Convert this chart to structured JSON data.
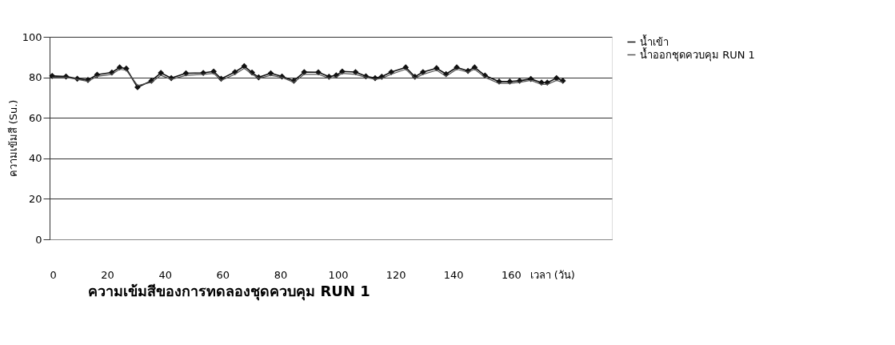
{
  "chart_data": {
    "type": "line",
    "title": "ความเข้มสีของการทดลองชุดควบคุม RUN 1",
    "xlabel": "เวลา (วัน)",
    "ylabel": "ความเข้มสี (Su.)",
    "xlim": [
      0,
      195
    ],
    "xticks": [
      0,
      20,
      40,
      60,
      80,
      100,
      120,
      140,
      160
    ],
    "ylim": [
      0,
      100
    ],
    "yticks": [
      0,
      20,
      40,
      60,
      80,
      100
    ],
    "grid": "y",
    "legend": "right",
    "marker": "diamond",
    "x": [
      0.9,
      5.7,
      9.6,
      13.3,
      16.5,
      21.6,
      24.3,
      26.6,
      30.5,
      35.3,
      38.6,
      42.2,
      47.3,
      53.3,
      56.9,
      59.5,
      64.3,
      67.5,
      70.2,
      72.5,
      76.7,
      80.6,
      84.7,
      88.3,
      93.2,
      96.9,
      99.4,
      101.5,
      106.1,
      109.7,
      112.9,
      115.2,
      118.5,
      123.5,
      126.7,
      129.5,
      134.2,
      137.5,
      141.2,
      145.1,
      147.4,
      151,
      155.9,
      159.6,
      163,
      166.9,
      170.6,
      172.6,
      175.8,
      178
    ],
    "series": [
      {
        "name": "น้ำเข้า",
        "color": "#111111",
        "values": [
          80.7,
          80.4,
          79.3,
          78.7,
          81.3,
          82.4,
          84.9,
          84.3,
          75.1,
          78.3,
          82.2,
          79.6,
          82,
          82.2,
          82.9,
          79.3,
          82.6,
          85.5,
          82.4,
          80,
          82,
          80.4,
          78.3,
          82.6,
          82.5,
          80.3,
          81,
          82.9,
          82.6,
          80.5,
          79.6,
          80.3,
          82.6,
          84.9,
          80.3,
          82.6,
          84.5,
          81.6,
          84.9,
          83.2,
          84.9,
          80.9,
          77.9,
          77.9,
          78.3,
          79.2,
          77.4,
          77.4,
          79.6,
          78.3
        ]
      },
      {
        "name": "น้ำออกชุดควบคุม RUN 1",
        "color": "#555555",
        "marker": "none",
        "values": [
          80,
          80,
          79,
          78,
          80.5,
          81.5,
          84,
          83.5,
          76,
          77.5,
          81,
          79,
          81,
          81.5,
          82,
          78.5,
          81.5,
          84.5,
          81.5,
          79.5,
          81,
          80,
          77.5,
          81.5,
          81.5,
          79.5,
          80,
          82,
          81.5,
          80,
          79,
          79.5,
          81.5,
          84,
          79.5,
          81.5,
          83.5,
          80.5,
          84,
          82.5,
          84,
          80,
          77,
          77,
          77.5,
          78.5,
          76.5,
          76.5,
          78.5,
          77.5
        ]
      }
    ]
  }
}
